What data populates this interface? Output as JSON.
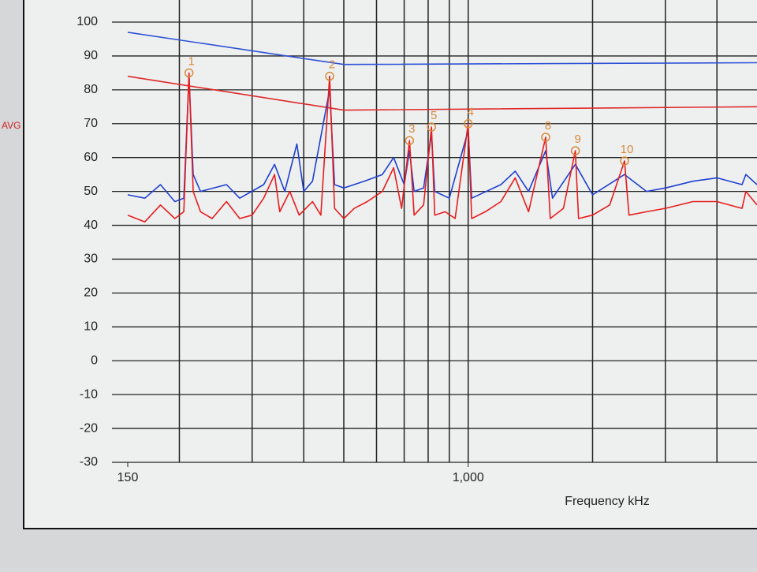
{
  "chart_data": {
    "type": "line",
    "side_label": "AVG",
    "xlabel": "Frequency kHz",
    "log_x": true,
    "grid": true,
    "xlim": [
      150,
      5000
    ],
    "ylim": [
      -30,
      100
    ],
    "xticks": [
      {
        "value": 150,
        "label": "150"
      },
      {
        "value": 1000,
        "label": "1,000"
      }
    ],
    "xgrid": [
      200,
      300,
      400,
      500,
      600,
      700,
      800,
      900,
      1000,
      2000,
      3000,
      4000
    ],
    "yticks": [
      -30,
      -20,
      -10,
      0,
      10,
      20,
      30,
      40,
      50,
      60,
      70,
      80,
      90,
      100
    ],
    "series": [
      {
        "color": "#2e52d6",
        "x": [
          150,
          500,
          5000
        ],
        "values": [
          97,
          87.5,
          88
        ]
      },
      {
        "color": "#e02828",
        "x": [
          150,
          500,
          5000
        ],
        "values": [
          84,
          74,
          75
        ]
      },
      {
        "color": "#1f3fd0",
        "x": [
          150,
          165,
          180,
          195,
          205,
          211,
          216,
          225,
          260,
          280,
          320,
          340,
          360,
          385,
          400,
          420,
          462,
          475,
          500,
          560,
          620,
          660,
          700,
          721,
          740,
          780,
          815,
          830,
          900,
          1000,
          1020,
          1200,
          1300,
          1400,
          1540,
          1600,
          1817,
          2000,
          2390,
          2700,
          3000,
          3500,
          4000,
          4600,
          4700,
          5000
        ],
        "values": [
          49,
          48,
          52,
          47,
          48,
          84,
          55,
          50,
          52,
          48,
          52,
          58,
          50,
          64,
          50,
          53,
          80,
          52,
          51,
          53,
          55,
          60,
          52,
          62,
          50,
          51,
          67,
          50,
          48,
          68,
          48,
          52,
          56,
          50,
          62,
          48,
          58,
          49,
          55,
          50,
          51,
          53,
          54,
          52,
          55,
          52
        ]
      },
      {
        "color": "#e81c1c",
        "x": [
          150,
          165,
          180,
          195,
          205,
          211,
          216,
          225,
          240,
          260,
          280,
          300,
          320,
          340,
          350,
          370,
          390,
          420,
          440,
          462,
          475,
          500,
          530,
          570,
          620,
          660,
          690,
          721,
          740,
          780,
          815,
          830,
          880,
          930,
          1000,
          1020,
          1100,
          1200,
          1300,
          1400,
          1540,
          1580,
          1700,
          1817,
          1850,
          2000,
          2200,
          2390,
          2450,
          2700,
          3000,
          3500,
          4000,
          4600,
          4700,
          5000
        ],
        "values": [
          43,
          41,
          46,
          42,
          44,
          85,
          50,
          44,
          42,
          47,
          42,
          43,
          48,
          55,
          44,
          50,
          43,
          47,
          43,
          84,
          45,
          42,
          45,
          47,
          50,
          57,
          45,
          65,
          43,
          46,
          69,
          43,
          44,
          42,
          70,
          42,
          44,
          47,
          54,
          44,
          66,
          42,
          45,
          62,
          42,
          43,
          46,
          59,
          43,
          44,
          45,
          47,
          47,
          45,
          50,
          46
        ]
      }
    ],
    "markers": [
      {
        "label": "1",
        "x": 211,
        "y": 85
      },
      {
        "label": "2",
        "x": 462,
        "y": 84
      },
      {
        "label": "3",
        "x": 721,
        "y": 65
      },
      {
        "label": "5",
        "x": 815,
        "y": 69
      },
      {
        "label": "4",
        "x": 1000,
        "y": 70
      },
      {
        "label": "8",
        "x": 1540,
        "y": 66
      },
      {
        "label": "9",
        "x": 1817,
        "y": 62
      },
      {
        "label": "10",
        "x": 2390,
        "y": 59
      }
    ]
  }
}
